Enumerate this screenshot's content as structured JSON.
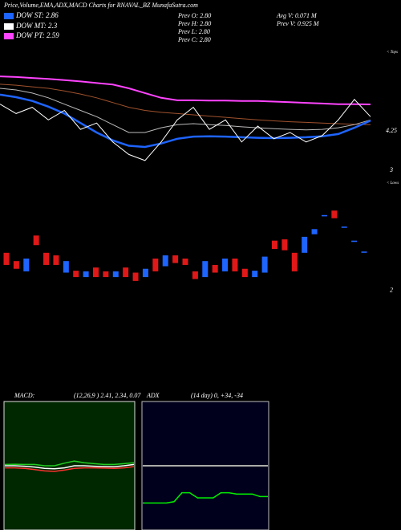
{
  "header": {
    "title": "Price,Volume,EMA,ADX,MACD Charts for RNAVAL_BZ MunafaSutra.com"
  },
  "legend": [
    {
      "label": "DOW ST: 2.86",
      "color": "#1e64ff"
    },
    {
      "label": "DOW MT: 2.3",
      "color": "#ffffff"
    },
    {
      "label": "DOW PT: 2.59",
      "color": "#ff44ff"
    }
  ],
  "stats": [
    "Prev  O: 2.80",
    "Prev  H: 2.80",
    "Prev  L: 2.80",
    "Prev  C: 2.80"
  ],
  "volume_stats": [
    "Avg V: 0.071 M",
    "Prev  V: 0.925 M"
  ],
  "chart_data": [
    {
      "type": "line",
      "annotation": "< Tops",
      "ylim": [
        2.9,
        6.9
      ],
      "yticks": [
        4.25,
        3
      ],
      "series": [
        {
          "color": "#ff44ff",
          "values": [
            5.98,
            5.96,
            5.93,
            5.9,
            5.86,
            5.82,
            5.77,
            5.72,
            5.6,
            5.45,
            5.3,
            5.22,
            5.22,
            5.21,
            5.21,
            5.2,
            5.2,
            5.18,
            5.16,
            5.14,
            5.12,
            5.1,
            5.1,
            5.09
          ]
        },
        {
          "color": "#a0522d",
          "values": [
            5.73,
            5.7,
            5.65,
            5.6,
            5.52,
            5.42,
            5.3,
            5.15,
            5.0,
            4.9,
            4.84,
            4.8,
            4.76,
            4.72,
            4.68,
            4.64,
            4.6,
            4.57,
            4.54,
            4.52,
            4.5,
            4.48,
            4.46,
            4.45
          ]
        },
        {
          "color": "#bbbbbb",
          "values": [
            5.6,
            5.55,
            5.45,
            5.3,
            5.1,
            4.9,
            4.7,
            4.45,
            4.2,
            4.2,
            4.35,
            4.45,
            4.48,
            4.45,
            4.42,
            4.38,
            4.35,
            4.32,
            4.3,
            4.28,
            4.3,
            4.35,
            4.45,
            4.6
          ]
        },
        {
          "color": "#1e64ff",
          "values": [
            5.4,
            5.32,
            5.2,
            5.02,
            4.8,
            4.5,
            4.2,
            3.95,
            3.78,
            3.74,
            3.85,
            4.0,
            4.07,
            4.08,
            4.07,
            4.05,
            4.03,
            4.02,
            4.03,
            4.05,
            4.08,
            4.15,
            4.35,
            4.58
          ]
        },
        {
          "color": "#ffffff",
          "values": [
            5.1,
            4.8,
            5.0,
            4.6,
            4.9,
            4.3,
            4.5,
            3.9,
            3.5,
            3.31,
            3.9,
            4.6,
            5.0,
            4.3,
            4.6,
            3.9,
            4.4,
            4.0,
            4.2,
            3.9,
            4.1,
            4.6,
            5.25,
            4.7
          ]
        }
      ]
    },
    {
      "type": "candlestick",
      "annotation": "< Lows",
      "ylim": [
        1.96,
        3.78
      ],
      "yticks": [
        2
      ],
      "up_color": "#1e64ff",
      "down_color": "#e01818",
      "open": [
        2.59,
        2.46,
        2.3,
        2.86,
        2.59,
        2.55,
        2.28,
        2.31,
        2.21,
        2.36,
        2.3,
        2.21,
        2.36,
        2.28,
        2.21,
        2.5,
        2.38,
        2.55,
        2.5,
        2.3,
        2.21,
        2.4,
        2.3,
        2.5,
        2.34,
        2.21,
        2.28,
        2.78,
        2.8,
        2.59,
        2.59,
        2.88,
        3.16,
        3.25,
        2.98,
        2.76,
        2.59
      ],
      "close": [
        2.4,
        2.34,
        2.5,
        2.71,
        2.4,
        2.4,
        2.46,
        2.21,
        2.3,
        2.21,
        2.21,
        2.3,
        2.21,
        2.15,
        2.34,
        2.3,
        2.55,
        2.43,
        2.4,
        2.18,
        2.46,
        2.28,
        2.5,
        2.3,
        2.21,
        2.31,
        2.53,
        2.65,
        2.63,
        2.3,
        2.84,
        2.96,
        3.18,
        3.13,
        3.0,
        2.78,
        2.61
      ]
    },
    {
      "type": "line",
      "title": "MACD:",
      "subtitle": "(12,26,9 ) 2.41, 2.34, 0.07",
      "ylim": [
        0,
        5
      ],
      "series": [
        {
          "color": "#ffffff",
          "values": [
            2.5,
            2.5,
            2.48,
            2.45,
            2.4,
            2.38,
            2.42,
            2.5,
            2.5,
            2.48,
            2.47,
            2.46,
            2.5,
            2.55
          ]
        },
        {
          "color": "#ff3030",
          "values": [
            2.42,
            2.42,
            2.4,
            2.35,
            2.3,
            2.28,
            2.33,
            2.4,
            2.42,
            2.42,
            2.41,
            2.4,
            2.42,
            2.47
          ]
        },
        {
          "color": "#22cc22",
          "values": [
            2.55,
            2.56,
            2.55,
            2.55,
            2.5,
            2.5,
            2.6,
            2.68,
            2.62,
            2.58,
            2.55,
            2.55,
            2.58,
            2.62
          ]
        }
      ]
    },
    {
      "type": "line",
      "title": "ADX",
      "subtitle": "(14 day) 0, +34, -34",
      "ylim": [
        0,
        100
      ],
      "reference_line": 50,
      "reference_color": "#aaaaaa",
      "series": [
        {
          "color": "#00ee00",
          "values": [
            21,
            21,
            21,
            21,
            22,
            29,
            29,
            25,
            25,
            25,
            29,
            29,
            28,
            28,
            28,
            26,
            26
          ]
        }
      ]
    }
  ]
}
